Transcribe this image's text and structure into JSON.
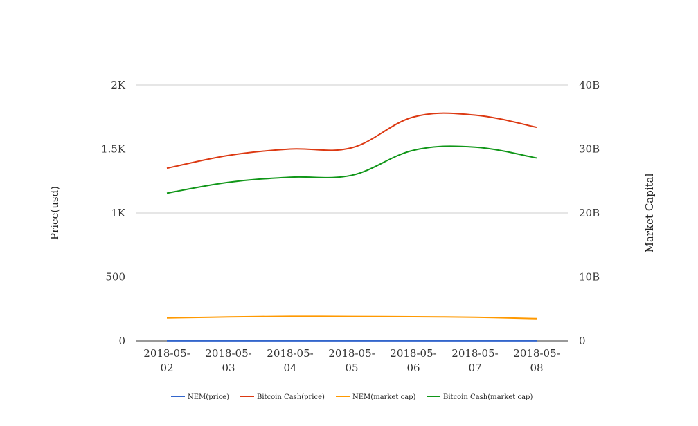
{
  "chart_data": {
    "type": "line",
    "x": [
      "2018-05-02",
      "2018-05-03",
      "2018-05-04",
      "2018-05-05",
      "2018-05-06",
      "2018-05-07",
      "2018-05-08"
    ],
    "x_tick_lines": [
      [
        "2018-05-",
        "02"
      ],
      [
        "2018-05-",
        "03"
      ],
      [
        "2018-05-",
        "04"
      ],
      [
        "2018-05-",
        "05"
      ],
      [
        "2018-05-",
        "06"
      ],
      [
        "2018-05-",
        "07"
      ],
      [
        "2018-05-",
        "08"
      ]
    ],
    "ylabel_left": "Price(usd)",
    "ylabel_right": "Market Capital",
    "ylim_left": [
      0,
      2000
    ],
    "ylim_right": [
      0,
      40000000000
    ],
    "yticks_left": [
      {
        "value": 0,
        "label": "0"
      },
      {
        "value": 500,
        "label": "500"
      },
      {
        "value": 1000,
        "label": "1K"
      },
      {
        "value": 1500,
        "label": "1.5K"
      },
      {
        "value": 2000,
        "label": "2K"
      }
    ],
    "yticks_right": [
      {
        "value": 0,
        "label": "0"
      },
      {
        "value": 10000000000,
        "label": "10B"
      },
      {
        "value": 20000000000,
        "label": "20B"
      },
      {
        "value": 30000000000,
        "label": "30B"
      },
      {
        "value": 40000000000,
        "label": "40B"
      }
    ],
    "grid": true,
    "legend_position": "bottom",
    "series": [
      {
        "name": "NEM(price)",
        "axis": "left",
        "color": "#3366cc",
        "values": [
          0.4,
          0.41,
          0.42,
          0.41,
          0.41,
          0.4,
          0.38
        ]
      },
      {
        "name": "Bitcoin Cash(price)",
        "axis": "left",
        "color": "#dc3912",
        "values": [
          1350,
          1450,
          1500,
          1510,
          1750,
          1765,
          1670
        ]
      },
      {
        "name": "NEM(market cap)",
        "axis": "right",
        "color": "#ff9900",
        "values": [
          3600000000,
          3750000000,
          3850000000,
          3830000000,
          3780000000,
          3700000000,
          3480000000
        ]
      },
      {
        "name": "Bitcoin Cash(market cap)",
        "axis": "right",
        "color": "#109618",
        "values": [
          23100000000,
          24800000000,
          25600000000,
          25900000000,
          29800000000,
          30300000000,
          28600000000
        ]
      }
    ]
  }
}
